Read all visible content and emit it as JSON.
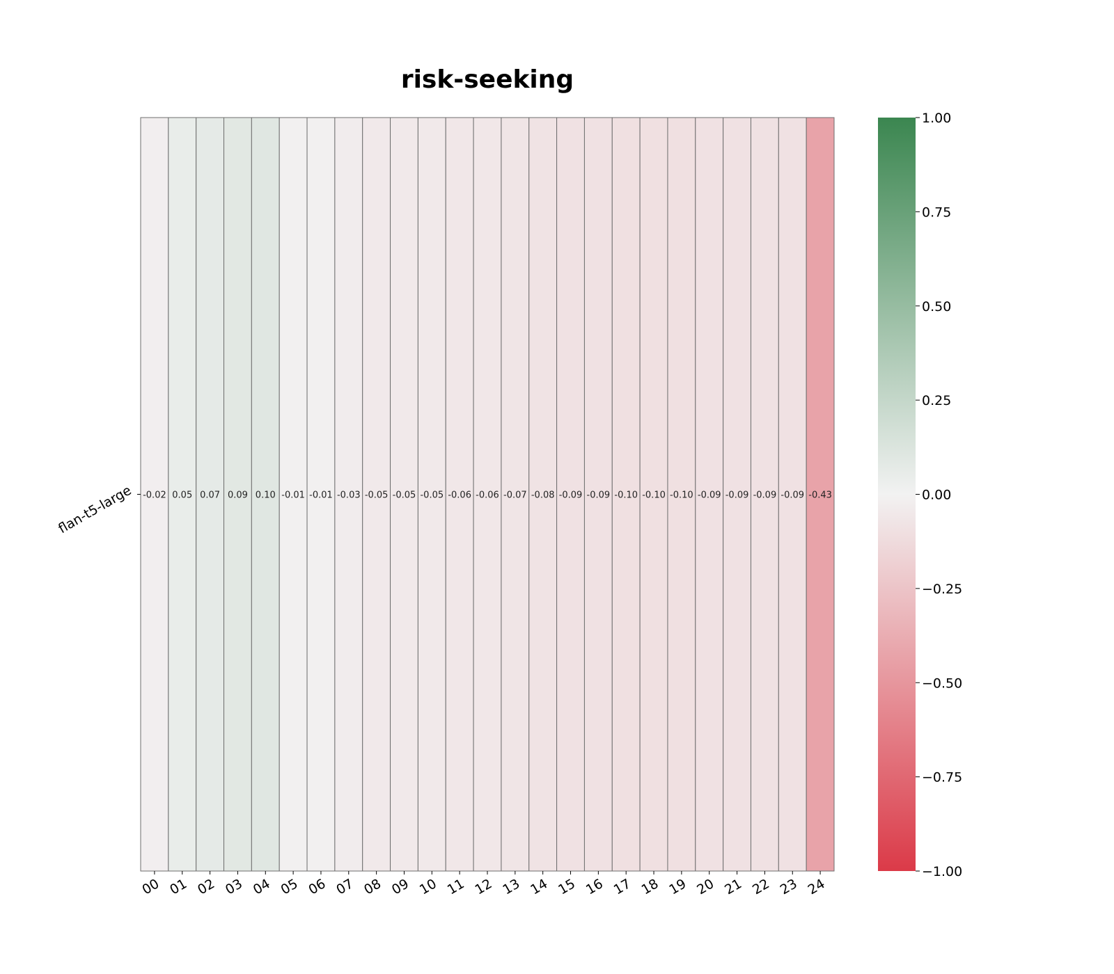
{
  "chart_data": {
    "type": "heatmap",
    "title": "risk-seeking",
    "rows": [
      "flan-t5-large"
    ],
    "columns": [
      "00",
      "01",
      "02",
      "03",
      "04",
      "05",
      "06",
      "07",
      "08",
      "09",
      "10",
      "11",
      "12",
      "13",
      "14",
      "15",
      "16",
      "17",
      "18",
      "19",
      "20",
      "21",
      "22",
      "23",
      "24"
    ],
    "values": [
      [
        -0.02,
        0.05,
        0.07,
        0.09,
        0.1,
        -0.01,
        -0.01,
        -0.03,
        -0.05,
        -0.05,
        -0.05,
        -0.06,
        -0.06,
        -0.07,
        -0.08,
        -0.09,
        -0.09,
        -0.1,
        -0.1,
        -0.1,
        -0.09,
        -0.09,
        -0.09,
        -0.09,
        -0.43
      ]
    ],
    "cell_labels": [
      [
        "-0.02",
        "0.05",
        "0.07",
        "0.09",
        "0.10",
        "-0.01",
        "-0.01",
        "-0.03",
        "-0.05",
        "-0.05",
        "-0.05",
        "-0.06",
        "-0.06",
        "-0.07",
        "-0.08",
        "-0.09",
        "-0.09",
        "-0.10",
        "-0.10",
        "-0.10",
        "-0.09",
        "-0.09",
        "-0.09",
        "-0.09",
        "-0.43"
      ]
    ],
    "colorbar": {
      "range": [
        -1.0,
        1.0
      ],
      "ticks": [
        1.0,
        0.75,
        0.5,
        0.25,
        0.0,
        -0.25,
        -0.5,
        -0.75,
        -1.0
      ],
      "tick_labels": [
        "1.00",
        "0.75",
        "0.50",
        "0.25",
        "0.00",
        "−0.25",
        "−0.50",
        "−0.75",
        "−1.00"
      ],
      "colors": {
        "negative": "#db3a48",
        "zero": "#f2f2f2",
        "positive": "#3b8650"
      }
    }
  }
}
